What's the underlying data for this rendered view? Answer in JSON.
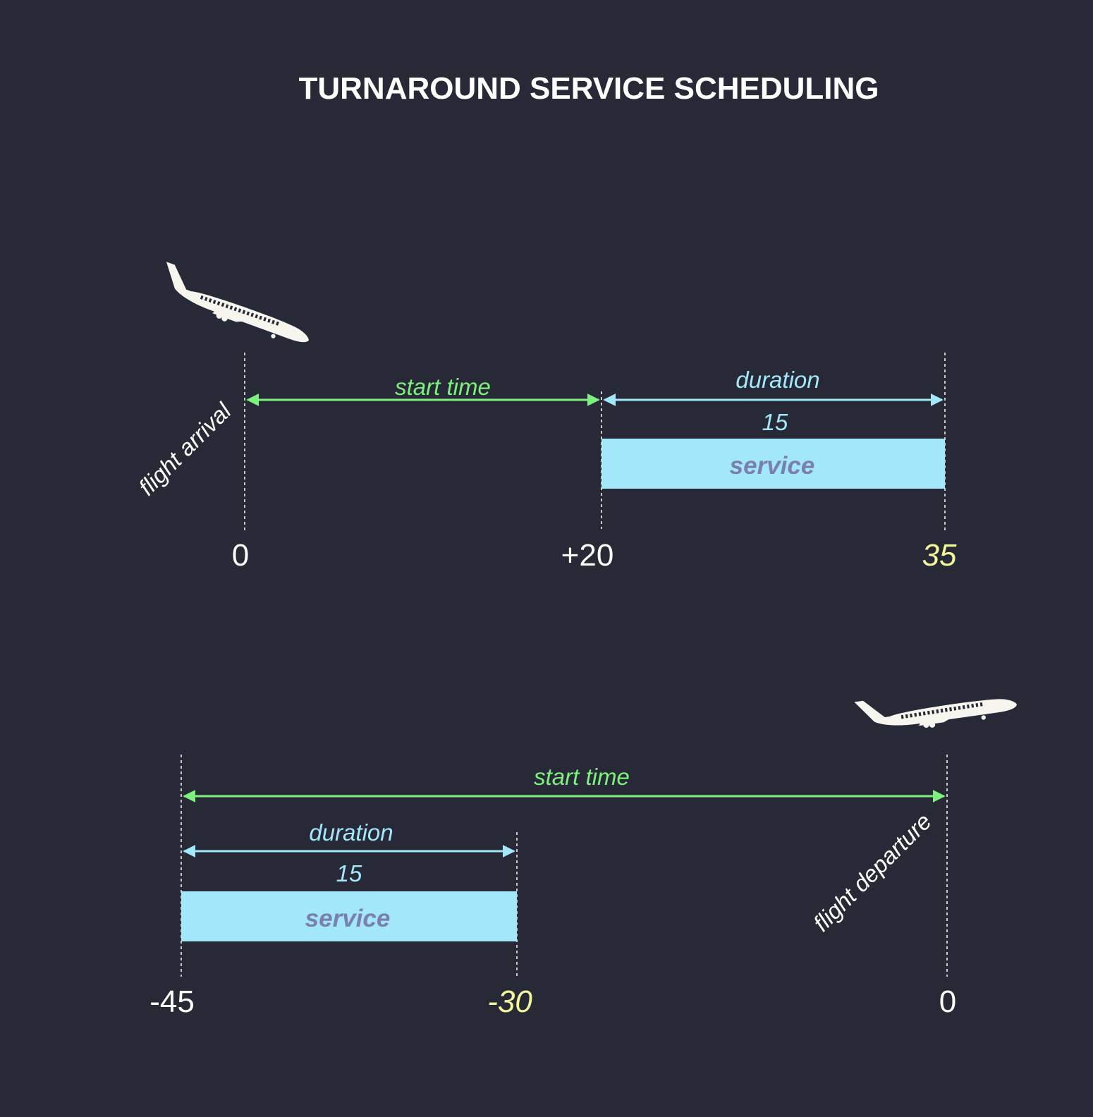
{
  "title": "TURNAROUND SERVICE SCHEDULING",
  "icons": [
    "airplane-landing-icon",
    "airplane-takeoff-icon"
  ],
  "colors": {
    "background": "#272a36",
    "start_time": "#7ef07e",
    "duration": "#a3e7fb",
    "service_bar": "#a3e7fb",
    "service_text": "#7a7fae",
    "highlight": "#f4f69c"
  },
  "arrival": {
    "event_label": "flight arrival",
    "start_label": "start time",
    "duration_label": "duration",
    "duration_value": "15",
    "service_label": "service",
    "ticks": [
      "0",
      "+20",
      "35"
    ]
  },
  "departure": {
    "event_label": "flight departure",
    "start_label": "start time",
    "duration_label": "duration",
    "duration_value": "15",
    "service_label": "service",
    "ticks": [
      "-45",
      "-30",
      "0"
    ]
  }
}
